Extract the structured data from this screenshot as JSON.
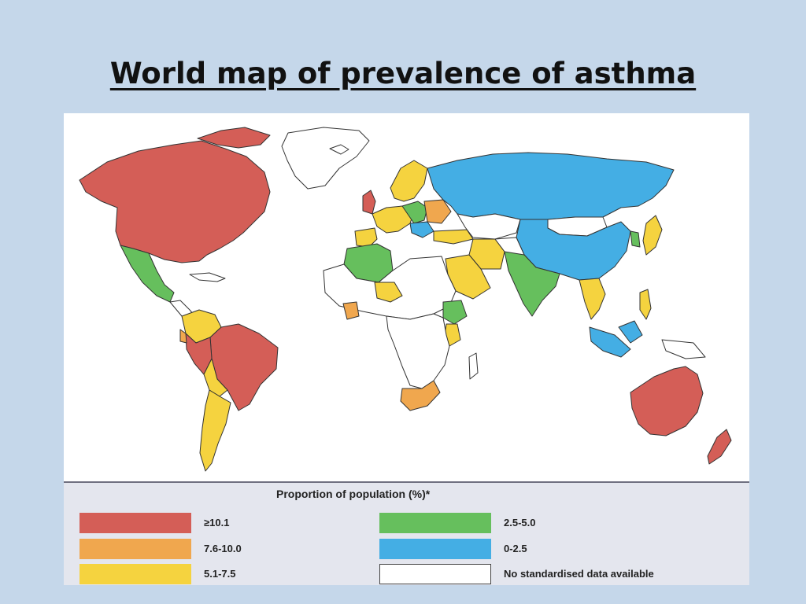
{
  "slide": {
    "title": "World map of prevalence of asthma"
  },
  "colors": {
    "very_high": "#d45e57",
    "high": "#f0a74e",
    "moderate": "#f5d33f",
    "low": "#66bf5d",
    "very_low": "#44aee4",
    "no_data": "#ffffff",
    "background": "#c5d7ea"
  },
  "legend": {
    "title": "Proportion of population (%)*",
    "items": [
      {
        "label": "≥10.1",
        "color": "#d45e57"
      },
      {
        "label": "7.6-10.0",
        "color": "#f0a74e"
      },
      {
        "label": "5.1-7.5",
        "color": "#f5d33f"
      },
      {
        "label": "2.5-5.0",
        "color": "#66bf5d"
      },
      {
        "label": "0-2.5",
        "color": "#44aee4"
      },
      {
        "label": "No standardised data available",
        "color": "#ffffff"
      }
    ]
  }
}
